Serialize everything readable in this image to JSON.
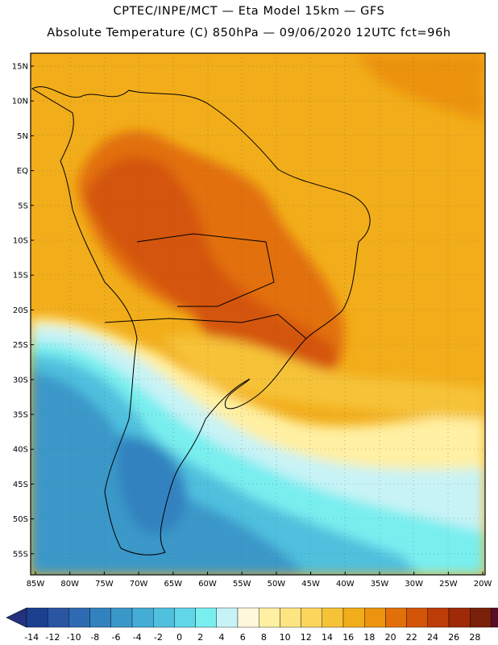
{
  "title_line1": "CPTEC/INPE/MCT —  Eta Model 15km — GFS",
  "title_line2": "Absolute Temperature (C) 850hPa — 09/06/2020 12UTC fct=96h",
  "lat_ticks": [
    "15N",
    "10N",
    "5N",
    "EQ",
    "5S",
    "10S",
    "15S",
    "20S",
    "25S",
    "30S",
    "35S",
    "40S",
    "45S",
    "50S",
    "55S"
  ],
  "lon_ticks": [
    "85W",
    "80W",
    "75W",
    "70W",
    "65W",
    "60W",
    "55W",
    "50W",
    "45W",
    "40W",
    "35W",
    "30W",
    "25W",
    "20W"
  ],
  "colorbar": {
    "labels": [
      "-14",
      "-12",
      "-10",
      "-8",
      "-6",
      "-4",
      "-2",
      "0",
      "2",
      "4",
      "6",
      "8",
      "10",
      "12",
      "14",
      "16",
      "18",
      "20",
      "22",
      "24",
      "26",
      "28"
    ],
    "colors": [
      "#1c3f8f",
      "#2a55a3",
      "#2f6bb2",
      "#3282bf",
      "#3a98c9",
      "#44acd5",
      "#4fc0de",
      "#60d6e8",
      "#79eeef",
      "#c8f3f6",
      "#fff7dc",
      "#fff0a3",
      "#fde582",
      "#fbd55c",
      "#f6c338",
      "#f2ad1a",
      "#ec9310",
      "#e2700a",
      "#d45508",
      "#bc3d07",
      "#9e2a07",
      "#782009",
      "#5a0b25"
    ],
    "low_arrow": "#24317e",
    "high_arrow": "#6a0030"
  }
}
